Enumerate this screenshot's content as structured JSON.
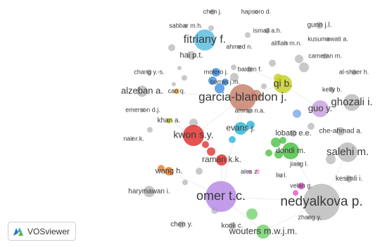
{
  "app": {
    "brand_label": "VOSviewer",
    "logo_icon": "vosviewer-logo-icon",
    "logo_colors": [
      "#2c6fb0",
      "#3aa6d9",
      "#55b947"
    ]
  },
  "network": {
    "nodes": [
      {
        "label": "chen j.",
        "color": "#bcbcbc",
        "weight": 3
      },
      {
        "label": "hapsoro d.",
        "color": "#bcbcbc",
        "weight": 2
      },
      {
        "label": "sabbar m.h.",
        "color": "#bcbcbc",
        "weight": 2
      },
      {
        "label": "gunn j.l.",
        "color": "#bcbcbc",
        "weight": 3
      },
      {
        "label": "fitriany f.",
        "color": "#5bc0de",
        "weight": 8
      },
      {
        "label": "ismail a.h.",
        "color": "#bcbcbc",
        "weight": 2
      },
      {
        "label": "kusumawati a.",
        "color": "#bcbcbc",
        "weight": 2
      },
      {
        "label": "ahmed n.",
        "color": "#bcbcbc",
        "weight": 2
      },
      {
        "label": "alifiah m.n.",
        "color": "#bcbcbc",
        "weight": 2
      },
      {
        "label": "hai p.t.",
        "color": "#bcbcbc",
        "weight": 3
      },
      {
        "label": "cameran m.",
        "color": "#bcbcbc",
        "weight": 2
      },
      {
        "label": "baiden f.",
        "color": "#bcbcbc",
        "weight": 2
      },
      {
        "label": "chang y.-s.",
        "color": "#bcbcbc",
        "weight": 2
      },
      {
        "label": "molero j.",
        "color": "#3d8ee0",
        "weight": 3
      },
      {
        "label": "qi b.",
        "color": "#c8d02a",
        "weight": 6
      },
      {
        "label": "al-shaer h.",
        "color": "#bcbcbc",
        "weight": 2
      },
      {
        "label": "borras j.m.",
        "color": "#3d8ee0",
        "weight": 2
      },
      {
        "label": "alzeban a.",
        "color": "#bcbcbc",
        "weight": 4
      },
      {
        "label": "cao q.",
        "color": "#e8a33c",
        "weight": 2
      },
      {
        "label": "kelly b.",
        "color": "#bcbcbc",
        "weight": 2
      },
      {
        "label": "garcia-blandon j.",
        "color": "#c9836e",
        "weight": 10
      },
      {
        "label": "ghozali i.",
        "color": "#bcbcbc",
        "weight": 5
      },
      {
        "label": "guo y.",
        "color": "#c9a2de",
        "weight": 5
      },
      {
        "label": "emerson d.j.",
        "color": "#bcbcbc",
        "weight": 2
      },
      {
        "label": "amran n.a.",
        "color": "#bcbcbc",
        "weight": 2
      },
      {
        "label": "khan a.",
        "color": "#c8d02a",
        "weight": 3
      },
      {
        "label": "evans j.",
        "color": "#2fb8d6",
        "weight": 4
      },
      {
        "label": "lobato e.e.",
        "color": "#bcbcbc",
        "weight": 3
      },
      {
        "label": "che-ahmad a.",
        "color": "#bcbcbc",
        "weight": 3
      },
      {
        "label": "kwon s.y.",
        "color": "#e2342f",
        "weight": 7
      },
      {
        "label": "salehi m.",
        "color": "#bcbcbc",
        "weight": 7
      },
      {
        "label": "dondi m.",
        "color": "#4cc146",
        "weight": 4
      },
      {
        "label": "nair r.k.",
        "color": "#bcbcbc",
        "weight": 2
      },
      {
        "label": "raman k.k.",
        "color": "#e2342f",
        "weight": 4
      },
      {
        "label": "jiang l.",
        "color": "#bcbcbc",
        "weight": 2
      },
      {
        "label": "ales z.",
        "color": "#f29ad6",
        "weight": 2
      },
      {
        "label": "liu l.",
        "color": "#bcbcbc",
        "weight": 2
      },
      {
        "label": "wang h.",
        "color": "#e57a2a",
        "weight": 3
      },
      {
        "label": "kesimli i.",
        "color": "#bcbcbc",
        "weight": 2
      },
      {
        "label": "velan g.",
        "color": "#e055c6",
        "weight": 2
      },
      {
        "label": "harymawan i.",
        "color": "#bcbcbc",
        "weight": 3
      },
      {
        "label": "omer t.c.",
        "color": "#b98ce6",
        "weight": 10
      },
      {
        "label": "nedyalkova p.",
        "color": "#bcbcbc",
        "weight": 12
      },
      {
        "label": "zhang y.",
        "color": "#bcbcbc",
        "weight": 2
      },
      {
        "label": "chen y.",
        "color": "#bcbcbc",
        "weight": 3
      },
      {
        "label": "kooli c.",
        "color": "#bcbcbc",
        "weight": 3
      },
      {
        "label": "wouters m.w.j.m.",
        "color": "#76d36f",
        "weight": 5
      }
    ]
  }
}
